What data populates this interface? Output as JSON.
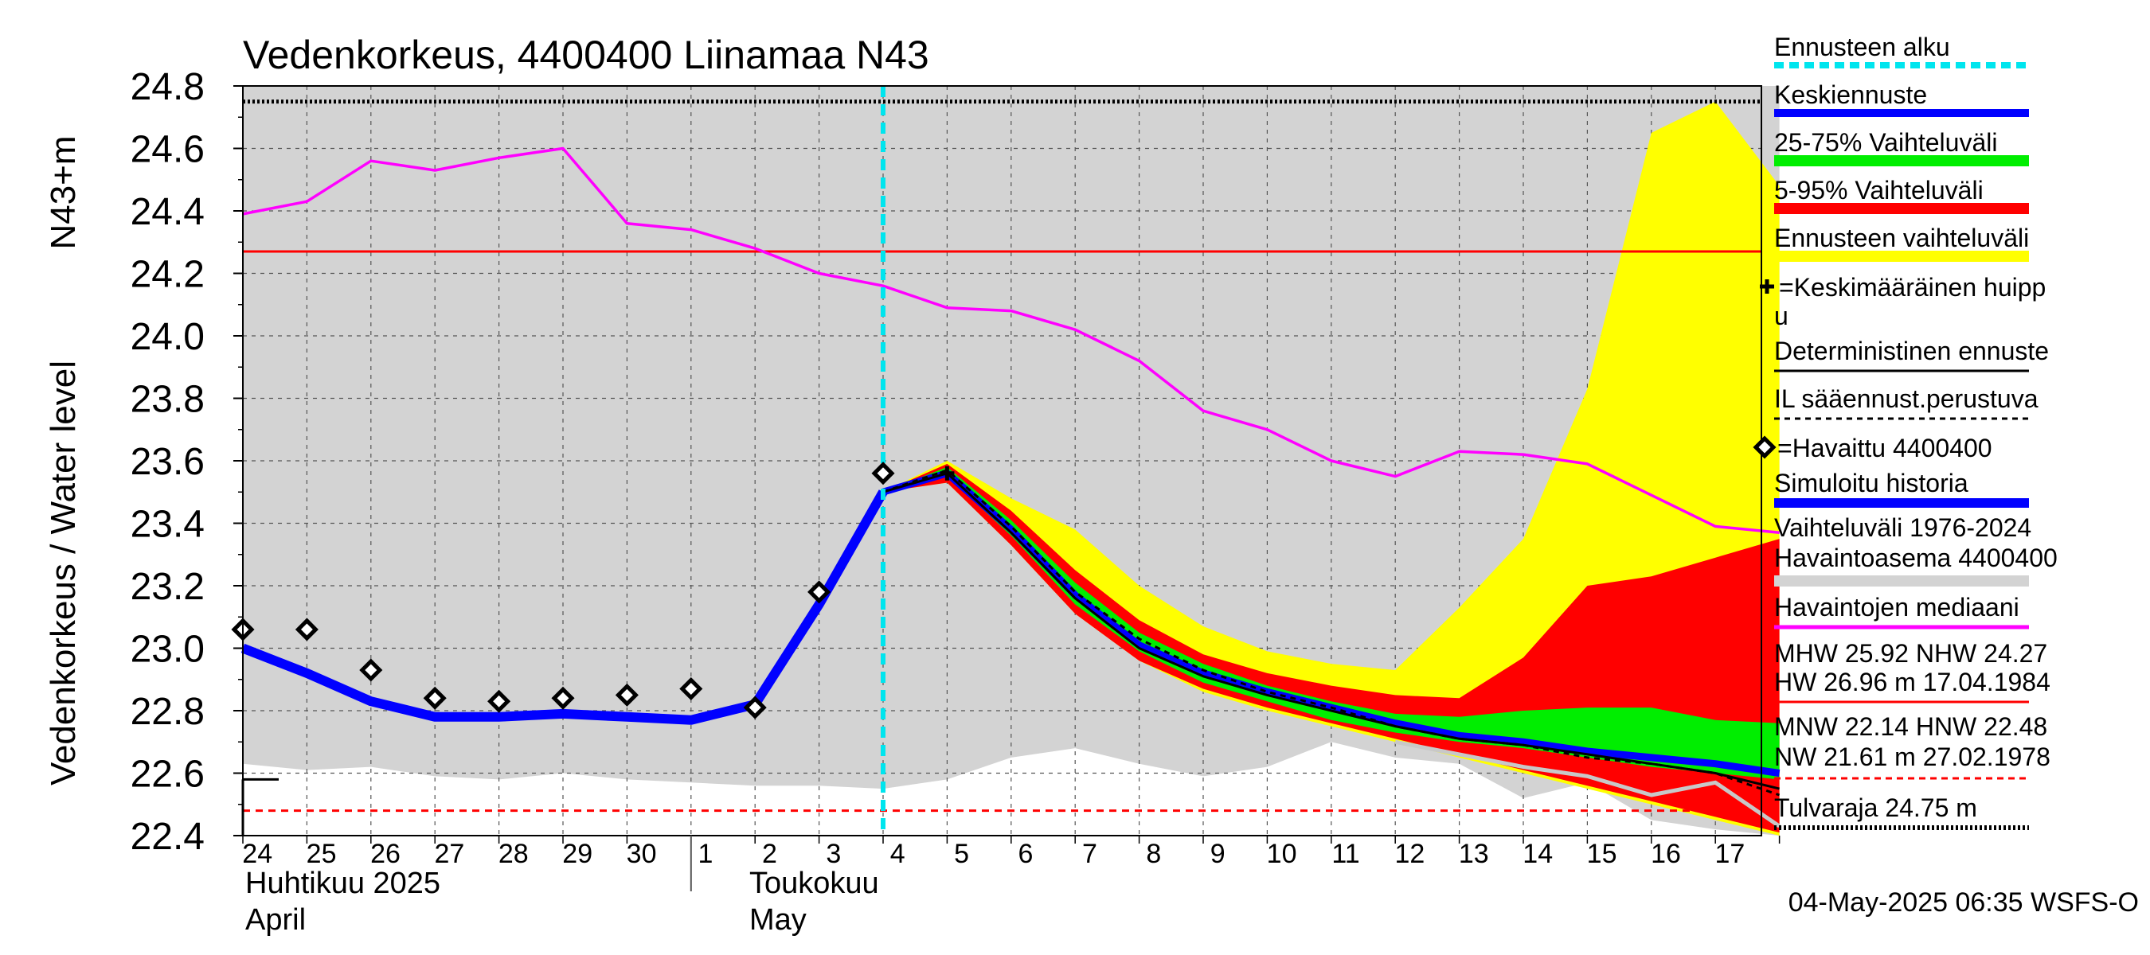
{
  "chart_data": {
    "type": "line",
    "title": "Vedenkorkeus, 4400400 Liinamaa N43",
    "ylabel": "Vedenkorkeus / Water level",
    "ylabel_unit": "N43+m",
    "ylim": [
      22.4,
      24.8
    ],
    "yticks": [
      "22.4",
      "22.6",
      "22.8",
      "23.0",
      "23.2",
      "23.4",
      "23.6",
      "23.8",
      "24.0",
      "24.2",
      "24.4",
      "24.6",
      "24.8"
    ],
    "x_dates": [
      "24",
      "25",
      "26",
      "27",
      "28",
      "29",
      "30",
      "1",
      "2",
      "3",
      "4",
      "5",
      "6",
      "7",
      "8",
      "9",
      "10",
      "11",
      "12",
      "13",
      "14",
      "15",
      "16",
      "17"
    ],
    "month_labels": [
      {
        "fi": "Huhtikuu  2025",
        "en": "April"
      },
      {
        "fi": "Toukokuu",
        "en": "May"
      }
    ],
    "forecast_start_day": 10,
    "observed": {
      "name": "=Havaittu 4400400",
      "days": [
        0,
        1,
        2,
        3,
        4,
        5,
        6,
        7,
        8,
        9,
        10
      ],
      "values": [
        23.06,
        23.06,
        22.93,
        22.84,
        22.83,
        22.84,
        22.85,
        22.87,
        22.81,
        23.18,
        23.56
      ]
    },
    "simulated_history": {
      "name": "Simuloitu historia",
      "days": [
        0,
        1,
        2,
        3,
        4,
        5,
        6,
        7,
        8,
        9,
        10
      ],
      "values": [
        23.0,
        22.92,
        22.83,
        22.78,
        22.78,
        22.79,
        22.78,
        22.77,
        22.82,
        23.14,
        23.5
      ]
    },
    "median_observed": {
      "name": "Havaintojen mediaani",
      "days": [
        0,
        1,
        2,
        3,
        4,
        5,
        6,
        7,
        8,
        9,
        10,
        11,
        12,
        13,
        14,
        15,
        16,
        17,
        18,
        19,
        20,
        21,
        22,
        23,
        24
      ],
      "values": [
        24.39,
        24.43,
        24.56,
        24.53,
        24.57,
        24.6,
        24.36,
        24.34,
        24.28,
        24.2,
        24.16,
        24.09,
        24.08,
        24.02,
        23.92,
        23.76,
        23.7,
        23.6,
        23.55,
        23.63,
        23.62,
        23.59,
        23.49,
        23.39,
        23.37
      ]
    },
    "range_1976_2024": {
      "name": "Vaihteluväli 1976-2024",
      "name2": " Havaintoasema 4400400",
      "days": [
        0,
        1,
        2,
        3,
        4,
        5,
        6,
        7,
        8,
        9,
        10,
        11,
        12,
        13,
        14,
        15,
        16,
        17,
        18,
        19,
        20,
        21,
        22,
        23,
        24
      ],
      "low": [
        22.63,
        22.61,
        22.62,
        22.59,
        22.58,
        22.6,
        22.58,
        22.57,
        22.56,
        22.56,
        22.55,
        22.58,
        22.65,
        22.68,
        22.63,
        22.59,
        22.62,
        22.7,
        22.65,
        22.63,
        22.52,
        22.57,
        22.45,
        22.42,
        22.4
      ],
      "high": [
        24.8,
        24.8,
        24.8,
        24.8,
        24.8,
        24.8,
        24.8,
        24.8,
        24.8,
        24.8,
        24.8,
        24.8,
        24.8,
        24.8,
        24.8,
        24.8,
        24.8,
        24.8,
        24.8,
        24.8,
        24.8,
        24.8,
        24.8,
        24.8,
        24.8
      ]
    },
    "forecast_range": {
      "name": "Ennusteen vaihteluväli",
      "days": [
        10,
        11,
        12,
        13,
        14,
        15,
        16,
        17,
        18,
        19,
        20,
        21,
        22,
        23,
        24
      ],
      "low": [
        23.5,
        23.53,
        23.33,
        23.11,
        22.96,
        22.86,
        22.8,
        22.75,
        22.7,
        22.65,
        22.6,
        22.55,
        22.5,
        22.45,
        22.4
      ],
      "high": [
        23.5,
        23.6,
        23.48,
        23.38,
        23.2,
        23.07,
        22.99,
        22.95,
        22.93,
        23.13,
        23.35,
        23.83,
        24.65,
        24.75,
        24.48
      ]
    },
    "range_5_95": {
      "name": "5-95% Vaihteluväli",
      "days": [
        10,
        11,
        12,
        13,
        14,
        15,
        16,
        17,
        18,
        19,
        20,
        21,
        22,
        23,
        24
      ],
      "low": [
        23.5,
        23.53,
        23.33,
        23.11,
        22.96,
        22.87,
        22.81,
        22.76,
        22.71,
        22.66,
        22.61,
        22.56,
        22.51,
        22.46,
        22.41
      ],
      "high": [
        23.5,
        23.59,
        23.44,
        23.25,
        23.09,
        22.98,
        22.92,
        22.88,
        22.85,
        22.84,
        22.97,
        23.2,
        23.23,
        23.29,
        23.35
      ]
    },
    "range_25_75": {
      "name": "25-75% Vaihteluväli",
      "days": [
        10,
        11,
        12,
        13,
        14,
        15,
        16,
        17,
        18,
        19,
        20,
        21,
        22,
        23,
        24
      ],
      "low": [
        23.5,
        23.55,
        23.36,
        23.14,
        22.99,
        22.89,
        22.83,
        22.77,
        22.73,
        22.7,
        22.68,
        22.65,
        22.62,
        22.6,
        22.58
      ],
      "high": [
        23.5,
        23.58,
        23.41,
        23.21,
        23.05,
        22.95,
        22.88,
        22.83,
        22.79,
        22.78,
        22.8,
        22.81,
        22.81,
        22.77,
        22.76
      ]
    },
    "median_forecast": {
      "name": "Keskiennuste",
      "days": [
        10,
        11,
        12,
        13,
        14,
        15,
        16,
        17,
        18,
        19,
        20,
        21,
        22,
        23,
        24
      ],
      "values": [
        23.5,
        23.56,
        23.38,
        23.17,
        23.01,
        22.92,
        22.86,
        22.81,
        22.76,
        22.72,
        22.7,
        22.67,
        22.65,
        22.63,
        22.6
      ]
    },
    "deterministic": {
      "name": "Deterministinen ennuste",
      "days": [
        10,
        11,
        12,
        13,
        14,
        15,
        16,
        17,
        18,
        19,
        20,
        21,
        22,
        23,
        24
      ],
      "values": [
        23.5,
        23.56,
        23.37,
        23.16,
        23.0,
        22.91,
        22.85,
        22.8,
        22.75,
        22.71,
        22.69,
        22.66,
        22.63,
        22.6,
        22.55
      ]
    },
    "il_forecast": {
      "name": "IL sääennust.perustuva",
      "days": [
        10,
        11,
        12,
        13,
        14,
        15,
        16,
        17,
        18,
        19,
        20,
        21,
        22,
        23,
        24
      ],
      "values": [
        23.5,
        23.57,
        23.39,
        23.18,
        23.03,
        22.93,
        22.86,
        22.81,
        22.75,
        22.71,
        22.69,
        22.65,
        22.63,
        22.6,
        22.53
      ]
    },
    "light_member": {
      "days": [
        18,
        19,
        20,
        21,
        22,
        23,
        24
      ],
      "values": [
        22.7,
        22.66,
        22.62,
        22.59,
        22.53,
        22.57,
        22.43
      ]
    },
    "mean_peak": {
      "name": "=Keskimääräinen huippu",
      "day": 11,
      "value": 23.56
    },
    "NHW": 24.27,
    "flood_limit": 24.75,
    "low_limit": 22.48,
    "legend_stats": {
      "mhw_line": "MHW   25.92 NHW  24.27",
      "hw_line": "HW  26.96 m 17.04.1984",
      "mnw_line": "MNW   22.14 HNW  22.48",
      "nw_line": "NW  21.61 m 27.02.1978",
      "tulvaraja": "Tulvaraja 24.75 m"
    },
    "legend": {
      "ennusteen_alku": "Ennusteen alku",
      "keskiennuste": "Keskiennuste",
      "v25_75": "25-75% Vaihteluväli",
      "v5_95": "5-95% Vaihteluväli",
      "ennusteen_vaihteluvali": "Ennusteen vaihteluväli",
      "keskimaarainen_huippu_1": "=Keskimääräinen huipp",
      "keskimaarainen_huippu_2": "u",
      "deterministinen": "Deterministinen ennuste",
      "il": "IL sääennust.perustuva",
      "havaittu": "=Havaittu 4400400",
      "simuloitu": "Simuloitu historia",
      "vaihteluvali_1": "Vaihteluväli 1976-2024",
      "vaihteluvali_2": " Havaintoasema 4400400",
      "mediaani": "Havaintojen mediaani"
    },
    "colors": {
      "history_range": "#d3d3d3",
      "forecast_range": "#ffff00",
      "range_5_95": "#ff0000",
      "range_25_75": "#00ee00",
      "median_forecast": "#0000ff",
      "simulated": "#0000ff",
      "median_obs": "#ff00ff",
      "forecast_start": "#00e5ee",
      "nhw_line": "#ff0000",
      "low_line": "#ff0000"
    },
    "footer": "04-May-2025 06:35 WSFS-O"
  }
}
